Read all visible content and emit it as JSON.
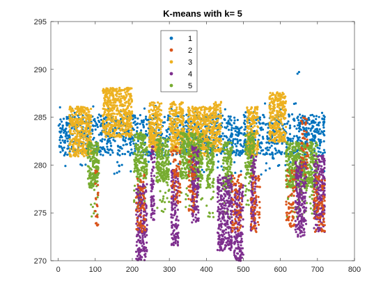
{
  "chart_data": {
    "type": "scatter",
    "title": "K-means with k= 5",
    "xlabel": "",
    "ylabel": "",
    "xlim": [
      -20,
      800
    ],
    "ylim": [
      270,
      295
    ],
    "xticks": [
      0,
      100,
      200,
      300,
      400,
      500,
      600,
      700,
      800
    ],
    "yticks": [
      270,
      275,
      280,
      285,
      290,
      295
    ],
    "grid": false,
    "legend_position": "top-left",
    "series": [
      {
        "name": "1",
        "color": "#0072BD",
        "style": "dense-band",
        "x_range": [
          0,
          720
        ],
        "y_range": [
          278.5,
          286.5
        ]
      },
      {
        "name": "2",
        "color": "#D95319",
        "style": "sparse-outliers",
        "x_range": [
          100,
          720
        ],
        "y_range": [
          271.5,
          287.5
        ]
      },
      {
        "name": "3",
        "color": "#EDB120",
        "style": "dense-band-upper",
        "x_range": [
          10,
          620
        ],
        "y_range": [
          280.5,
          288.0
        ]
      },
      {
        "name": "4",
        "color": "#7E2F8E",
        "style": "deep-dips",
        "x_range": [
          200,
          720
        ],
        "y_range": [
          270.5,
          283.0
        ]
      },
      {
        "name": "5",
        "color": "#77AC30",
        "style": "dense-band-lower",
        "x_range": [
          90,
          700
        ],
        "y_range": [
          275.5,
          287.5
        ]
      }
    ]
  }
}
